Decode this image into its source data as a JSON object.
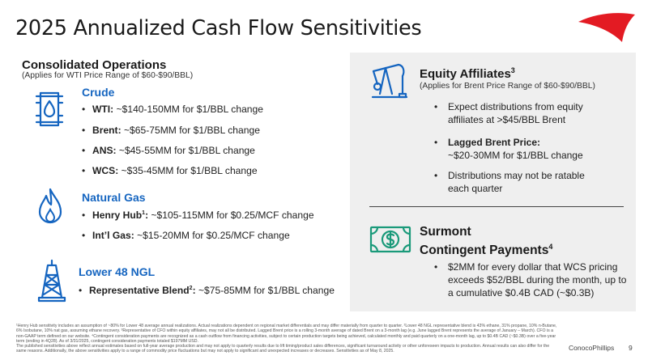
{
  "title": "2025 Annualized Cash Flow Sensitivities",
  "colors": {
    "accent": "#1565c0",
    "logo_red": "#e31b23",
    "panel": "#efefef"
  },
  "left": {
    "heading": "Consolidated Operations",
    "subheading": "(Applies for WTI Price Range of $60-$90/BBL)",
    "crude": {
      "label": "Crude",
      "icon": "oil-barrel-icon",
      "items": [
        {
          "k": "WTI:",
          "v": " ~$140-150MM for $1/BBL change"
        },
        {
          "k": "Brent:",
          "v": " ~$65-75MM for $1/BBL change"
        },
        {
          "k": "ANS:",
          "v": " ~$45-55MM for $1/BBL change"
        },
        {
          "k": "WCS:",
          "v": " ~$35-45MM for $1/BBL change"
        }
      ]
    },
    "gas": {
      "label": "Natural Gas",
      "icon": "flame-icon",
      "items": [
        {
          "k": "Henry Hub",
          "sup": "1",
          "k2": ":",
          "v": " ~$105-115MM for $0.25/MCF change"
        },
        {
          "k": "Int’l Gas:",
          "v": " ~$15-20MM for $0.25/MCF change"
        }
      ]
    },
    "ngl": {
      "label": "Lower 48 NGL",
      "icon": "drilling-rig-icon",
      "items": [
        {
          "k": "Representative Blend",
          "sup": "2",
          "k2": ":",
          "v": " ~$75-85MM for $1/BBL change"
        }
      ]
    }
  },
  "right": {
    "equity": {
      "heading": "Equity Affiliates",
      "sup": "3",
      "icon": "pumpjack-icon",
      "subheading": "(Applies for Brent Price Range of $60-$90/BBL)",
      "bullet1_l1": "Expect distributions from equity",
      "bullet1_l2": "affiliates at >$45/BBL Brent",
      "bullet2_l1": "Lagged Brent Price:",
      "bullet2_l2": "~$20-30MM for $1/BBL change",
      "bullet3_l1": "Distributions may not be ratable",
      "bullet3_l2": "each quarter"
    },
    "surmont": {
      "heading_l1": "Surmont",
      "heading_l2": "Contingent Payments",
      "sup": "4",
      "icon": "dollar-bill-icon",
      "bullet_l1": "$2MM for every dollar that WCS pricing",
      "bullet_l2": "exceeds $52/BBL during the month, up to",
      "bullet_l3": "a cumulative $0.4B CAD (~$0.3B)"
    }
  },
  "footnotes": {
    "p1": "¹Henry Hub sensitivity includes an assumption of ~80% for Lower 48 average annual realizations. Actual realizations dependent on regional market differentials and may differ materially from quarter to quarter. ²Lower 48 NGL representative blend is 43% ethane, 31% propane, 10% n-Butane, 6% Isobutane, 10% nat gas, assuming ethane recovery. ³Representative of CFO within equity affiliates, may not all be distributed. Lagged Brent price is a rolling 3-month average of dated Brent on a 3-month lag (e.g. June lagged Brent represents the average of January – March). CFO is a non-GAAP term defined on our website. ⁴Contingent consideration payments are recognized as a cash outflow from financing activities, subject to certain production targets being achieved, calculated monthly and paid quarterly on a one-month lag, up to $0.4B CAD (~$0.3B) over a five-year term (ending in 4Q28). As of 3/31/2025, contingent consideration payments totaled $197MM USD.",
    "p2": "The published sensitivities above reflect annual estimates based on full-year average production and may not apply to quarterly results due to lift timing/product sales differences, significant turnaround activity or other unforeseen impacts to production. Annual results can also differ for the same reasons. Additionally, the above sensitivities apply to a range of commodity price fluctuations but may not apply to significant and unexpected increases or decreases. Sensitivities as of May 8, 2025."
  },
  "brand": "ConocoPhillips",
  "page_number": "9"
}
